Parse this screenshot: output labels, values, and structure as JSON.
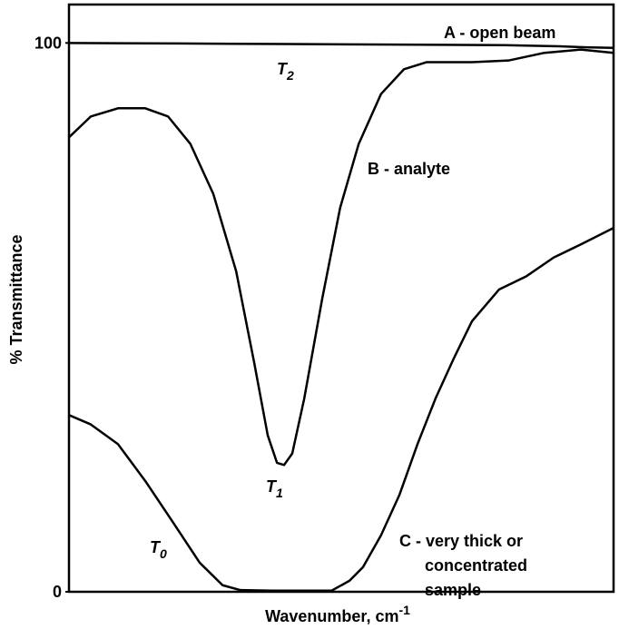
{
  "chart_data": {
    "type": "line",
    "ylabel": "% Transmittance",
    "xlabel": {
      "text": "Wavenumber, cm",
      "superscript": "-1"
    },
    "xlim": [
      0,
      100
    ],
    "ylim": [
      0,
      107
    ],
    "yticks": [
      0,
      100
    ],
    "grid": false,
    "series": [
      {
        "name": "A - open beam",
        "color": "#000000",
        "x": [
          0,
          20,
          40,
          60,
          80,
          90,
          95,
          100
        ],
        "values": [
          100,
          99.9,
          99.8,
          99.7,
          99.6,
          99.4,
          99.2,
          99.1
        ]
      },
      {
        "name": "B - analyte",
        "color": "#000000",
        "x": [
          0,
          4,
          9,
          14,
          18.2,
          22.3,
          26.5,
          30.7,
          34,
          36.5,
          38.2,
          39.5,
          41,
          43.2,
          46.5,
          49.8,
          53.2,
          57.3,
          61.5,
          65.7,
          74,
          80.7,
          87.3,
          94,
          100
        ],
        "values": [
          82.8,
          86.6,
          88.1,
          88.1,
          86.6,
          81.6,
          72.5,
          58.4,
          41.8,
          28.5,
          23.5,
          23.1,
          25.2,
          35.2,
          53.4,
          70,
          81.6,
          90.7,
          95.2,
          96.5,
          96.5,
          96.8,
          98.2,
          98.8,
          98.2
        ]
      },
      {
        "name": "C - very thick or concentrated sample",
        "color": "#000000",
        "x": [
          0,
          4,
          9,
          14,
          19,
          24,
          28.2,
          31.5,
          37.3,
          48.2,
          51.5,
          54,
          57.3,
          60.7,
          64,
          67.3,
          70.7,
          74,
          79,
          84,
          89,
          94,
          100
        ],
        "values": [
          32.2,
          30.5,
          26.9,
          20.2,
          12.8,
          5.3,
          1.2,
          0.3,
          0.2,
          0.2,
          2,
          4.5,
          10.3,
          17.7,
          26.9,
          35.2,
          42.6,
          49.3,
          55.1,
          57.5,
          60.9,
          63.3,
          66.3
        ]
      }
    ],
    "annotations": [
      {
        "lines": [
          "A - open beam"
        ]
      },
      {
        "text": "T",
        "subscript": "2"
      },
      {
        "lines": [
          "B - analyte"
        ]
      },
      {
        "text": "T",
        "subscript": "1"
      },
      {
        "lines": [
          "C - very thick or",
          "concentrated",
          "sample"
        ]
      },
      {
        "text": "T",
        "subscript": "0"
      }
    ]
  }
}
